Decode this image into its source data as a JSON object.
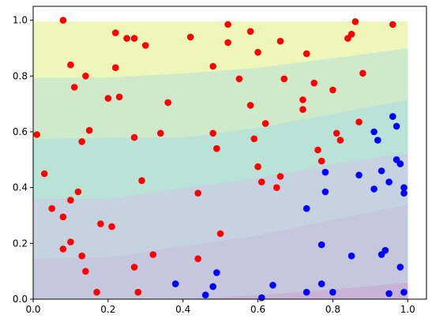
{
  "chart_data": {
    "type": "scatter",
    "title": "",
    "xlabel": "",
    "ylabel": "",
    "xlim": [
      0.0,
      1.05
    ],
    "ylim": [
      0.0,
      1.05
    ],
    "grid": false,
    "x_ticks": [
      "0.0",
      "0.2",
      "0.4",
      "0.6",
      "0.8",
      "1.0"
    ],
    "y_ticks": [
      "0.0",
      "0.2",
      "0.4",
      "0.6",
      "0.8",
      "1.0"
    ],
    "decision_regions": {
      "boundaries_x": [
        0.0,
        0.2,
        0.4,
        0.6,
        0.8,
        1.0
      ],
      "boundaries": [
        [
          0.0,
          0.0,
          0.0,
          0.0,
          0.0,
          0.0
        ],
        [
          0.0,
          0.0,
          0.0,
          0.015,
          0.035,
          0.06
        ],
        [
          0.145,
          0.15,
          0.19,
          0.23,
          0.285,
          0.34
        ],
        [
          0.36,
          0.36,
          0.4,
          0.435,
          0.485,
          0.525
        ],
        [
          0.575,
          0.58,
          0.58,
          0.615,
          0.665,
          0.715
        ],
        [
          0.795,
          0.795,
          0.81,
          0.83,
          0.865,
          0.9
        ],
        [
          0.995,
          0.995,
          0.995,
          0.995,
          0.995,
          0.995
        ]
      ],
      "colors": [
        "#c9b3d4",
        "#c5c7dd",
        "#c5d2e0",
        "#bae3d8",
        "#cfeacb",
        "#eef7b9"
      ]
    },
    "series": [
      {
        "color": "#ff0000",
        "points": [
          [
            0.08,
            1.0
          ],
          [
            0.22,
            0.955
          ],
          [
            0.25,
            0.935
          ],
          [
            0.27,
            0.935
          ],
          [
            0.3,
            0.91
          ],
          [
            0.42,
            0.94
          ],
          [
            0.52,
            0.985
          ],
          [
            0.58,
            0.96
          ],
          [
            0.66,
            0.925
          ],
          [
            0.52,
            0.92
          ],
          [
            0.6,
            0.885
          ],
          [
            0.73,
            0.88
          ],
          [
            0.85,
            0.95
          ],
          [
            0.86,
            0.995
          ],
          [
            0.84,
            0.935
          ],
          [
            0.96,
            0.985
          ],
          [
            0.01,
            0.59
          ],
          [
            0.1,
            0.84
          ],
          [
            0.22,
            0.83
          ],
          [
            0.14,
            0.8
          ],
          [
            0.48,
            0.835
          ],
          [
            0.55,
            0.79
          ],
          [
            0.67,
            0.79
          ],
          [
            0.75,
            0.775
          ],
          [
            0.88,
            0.81
          ],
          [
            0.11,
            0.76
          ],
          [
            0.2,
            0.72
          ],
          [
            0.23,
            0.725
          ],
          [
            0.36,
            0.705
          ],
          [
            0.58,
            0.695
          ],
          [
            0.72,
            0.715
          ],
          [
            0.72,
            0.68
          ],
          [
            0.8,
            0.75
          ],
          [
            0.15,
            0.605
          ],
          [
            0.13,
            0.565
          ],
          [
            0.27,
            0.58
          ],
          [
            0.34,
            0.595
          ],
          [
            0.48,
            0.595
          ],
          [
            0.62,
            0.63
          ],
          [
            0.59,
            0.575
          ],
          [
            0.81,
            0.595
          ],
          [
            0.82,
            0.57
          ],
          [
            0.87,
            0.635
          ],
          [
            0.49,
            0.54
          ],
          [
            0.76,
            0.535
          ],
          [
            0.77,
            0.495
          ],
          [
            0.03,
            0.45
          ],
          [
            0.6,
            0.475
          ],
          [
            0.66,
            0.44
          ],
          [
            0.61,
            0.42
          ],
          [
            0.65,
            0.4
          ],
          [
            0.29,
            0.425
          ],
          [
            0.12,
            0.385
          ],
          [
            0.44,
            0.38
          ],
          [
            0.1,
            0.355
          ],
          [
            0.05,
            0.325
          ],
          [
            0.08,
            0.295
          ],
          [
            0.18,
            0.27
          ],
          [
            0.21,
            0.26
          ],
          [
            0.5,
            0.235
          ],
          [
            0.1,
            0.205
          ],
          [
            0.08,
            0.18
          ],
          [
            0.13,
            0.155
          ],
          [
            0.32,
            0.16
          ],
          [
            0.44,
            0.145
          ],
          [
            0.27,
            0.115
          ],
          [
            0.14,
            0.1
          ],
          [
            0.17,
            0.025
          ],
          [
            0.28,
            0.025
          ]
        ]
      },
      {
        "color": "#0000ff",
        "points": [
          [
            0.96,
            0.655
          ],
          [
            0.97,
            0.62
          ],
          [
            0.91,
            0.6
          ],
          [
            0.92,
            0.57
          ],
          [
            0.97,
            0.5
          ],
          [
            0.98,
            0.485
          ],
          [
            0.93,
            0.46
          ],
          [
            0.87,
            0.445
          ],
          [
            0.78,
            0.455
          ],
          [
            0.95,
            0.42
          ],
          [
            0.99,
            0.4
          ],
          [
            0.91,
            0.395
          ],
          [
            0.78,
            0.385
          ],
          [
            0.99,
            0.38
          ],
          [
            0.73,
            0.325
          ],
          [
            0.77,
            0.195
          ],
          [
            0.94,
            0.175
          ],
          [
            0.93,
            0.16
          ],
          [
            0.85,
            0.155
          ],
          [
            0.98,
            0.115
          ],
          [
            0.49,
            0.095
          ],
          [
            0.38,
            0.055
          ],
          [
            0.48,
            0.045
          ],
          [
            0.64,
            0.05
          ],
          [
            0.77,
            0.055
          ],
          [
            0.46,
            0.015
          ],
          [
            0.61,
            0.005
          ],
          [
            0.73,
            0.025
          ],
          [
            0.8,
            0.025
          ],
          [
            0.95,
            0.02
          ],
          [
            0.99,
            0.025
          ]
        ]
      }
    ]
  }
}
